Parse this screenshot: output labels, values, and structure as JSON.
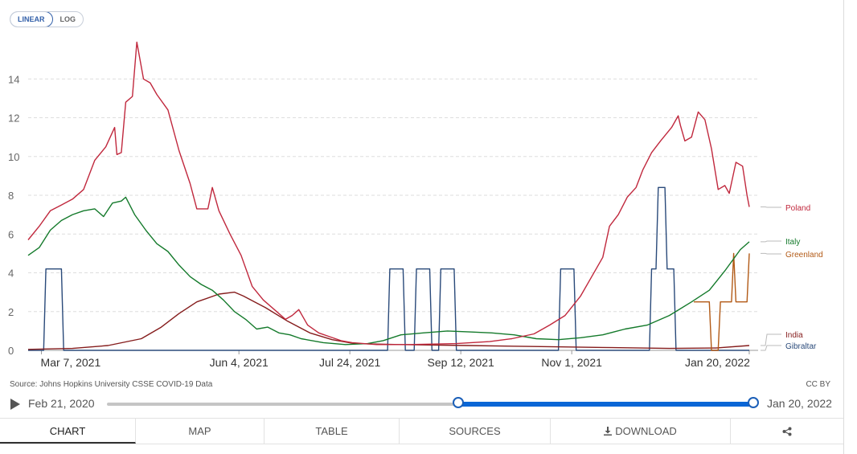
{
  "toolbar": {
    "linear_label": "LINEAR",
    "log_label": "LOG",
    "active_scale": "linear"
  },
  "source_note": "Source: Johns Hopkins University CSSE COVID-19 Data",
  "license": "CC BY",
  "timeline": {
    "start_label": "Feb 21, 2020",
    "end_label": "Jan 20, 2022",
    "range_start_fraction": 0.54,
    "range_end_fraction": 1.0
  },
  "tabs": [
    {
      "id": "chart",
      "label": "CHART",
      "active": true
    },
    {
      "id": "map",
      "label": "MAP",
      "active": false
    },
    {
      "id": "table",
      "label": "TABLE",
      "active": false
    },
    {
      "id": "sources",
      "label": "SOURCES",
      "active": false
    },
    {
      "id": "download",
      "label": "DOWNLOAD",
      "active": false,
      "icon": "download-icon"
    },
    {
      "id": "share",
      "label": "",
      "active": false,
      "icon": "share-icon"
    }
  ],
  "chart_data": {
    "type": "line",
    "x_axis": {
      "type": "date",
      "range": [
        "2021-03-01",
        "2022-01-24"
      ],
      "ticks": [
        {
          "date": "2021-03-07",
          "label": "Mar 7, 2021"
        },
        {
          "date": "2021-06-04",
          "label": "Jun 4, 2021"
        },
        {
          "date": "2021-07-24",
          "label": "Jul 24, 2021"
        },
        {
          "date": "2021-09-12",
          "label": "Sep 12, 2021"
        },
        {
          "date": "2021-11-01",
          "label": "Nov 1, 2021"
        },
        {
          "date": "2022-01-20",
          "label": "Jan 20, 2022"
        }
      ]
    },
    "y_axis": {
      "scale": "linear",
      "min": 0,
      "max": 16,
      "ticks": [
        0,
        2,
        4,
        6,
        8,
        10,
        12,
        14
      ]
    },
    "grid": true,
    "legend": "right",
    "series": [
      {
        "name": "Poland",
        "color": "#c0283d",
        "points": [
          [
            "2021-03-01",
            5.7
          ],
          [
            "2021-03-06",
            6.4
          ],
          [
            "2021-03-11",
            7.2
          ],
          [
            "2021-03-16",
            7.5
          ],
          [
            "2021-03-21",
            7.8
          ],
          [
            "2021-03-26",
            8.3
          ],
          [
            "2021-03-31",
            9.8
          ],
          [
            "2021-04-05",
            10.5
          ],
          [
            "2021-04-09",
            11.5
          ],
          [
            "2021-04-10",
            10.1
          ],
          [
            "2021-04-12",
            10.2
          ],
          [
            "2021-04-14",
            12.8
          ],
          [
            "2021-04-17",
            13.1
          ],
          [
            "2021-04-19",
            15.9
          ],
          [
            "2021-04-22",
            14.0
          ],
          [
            "2021-04-25",
            13.8
          ],
          [
            "2021-04-28",
            13.2
          ],
          [
            "2021-05-03",
            12.4
          ],
          [
            "2021-05-08",
            10.3
          ],
          [
            "2021-05-13",
            8.6
          ],
          [
            "2021-05-16",
            7.3
          ],
          [
            "2021-05-21",
            7.3
          ],
          [
            "2021-05-23",
            8.4
          ],
          [
            "2021-05-26",
            7.2
          ],
          [
            "2021-05-31",
            6.0
          ],
          [
            "2021-06-05",
            4.9
          ],
          [
            "2021-06-10",
            3.3
          ],
          [
            "2021-06-15",
            2.6
          ],
          [
            "2021-06-20",
            2.1
          ],
          [
            "2021-06-25",
            1.6
          ],
          [
            "2021-06-28",
            1.8
          ],
          [
            "2021-07-01",
            2.1
          ],
          [
            "2021-07-05",
            1.3
          ],
          [
            "2021-07-10",
            0.9
          ],
          [
            "2021-07-15",
            0.7
          ],
          [
            "2021-07-20",
            0.5
          ],
          [
            "2021-07-25",
            0.4
          ],
          [
            "2021-08-05",
            0.3
          ],
          [
            "2021-08-20",
            0.3
          ],
          [
            "2021-09-10",
            0.35
          ],
          [
            "2021-09-25",
            0.45
          ],
          [
            "2021-10-05",
            0.6
          ],
          [
            "2021-10-15",
            0.85
          ],
          [
            "2021-10-22",
            1.3
          ],
          [
            "2021-10-29",
            1.8
          ],
          [
            "2021-11-05",
            2.8
          ],
          [
            "2021-11-10",
            3.8
          ],
          [
            "2021-11-15",
            4.8
          ],
          [
            "2021-11-18",
            6.4
          ],
          [
            "2021-11-22",
            7.0
          ],
          [
            "2021-11-26",
            7.9
          ],
          [
            "2021-11-30",
            8.4
          ],
          [
            "2021-12-03",
            9.3
          ],
          [
            "2021-12-07",
            10.2
          ],
          [
            "2021-12-11",
            10.8
          ],
          [
            "2021-12-16",
            11.5
          ],
          [
            "2021-12-19",
            12.1
          ],
          [
            "2021-12-20",
            11.6
          ],
          [
            "2021-12-22",
            10.8
          ],
          [
            "2021-12-25",
            11.0
          ],
          [
            "2021-12-28",
            12.3
          ],
          [
            "2021-12-31",
            11.9
          ],
          [
            "2022-01-03",
            10.4
          ],
          [
            "2022-01-06",
            8.3
          ],
          [
            "2022-01-09",
            8.5
          ],
          [
            "2022-01-11",
            8.1
          ],
          [
            "2022-01-14",
            9.7
          ],
          [
            "2022-01-17",
            9.5
          ],
          [
            "2022-01-19",
            8.0
          ],
          [
            "2022-01-20",
            7.4
          ]
        ]
      },
      {
        "name": "Italy",
        "color": "#147a2b",
        "points": [
          [
            "2021-03-01",
            4.9
          ],
          [
            "2021-03-06",
            5.3
          ],
          [
            "2021-03-11",
            6.2
          ],
          [
            "2021-03-16",
            6.7
          ],
          [
            "2021-03-21",
            7.0
          ],
          [
            "2021-03-26",
            7.2
          ],
          [
            "2021-03-31",
            7.3
          ],
          [
            "2021-04-04",
            6.9
          ],
          [
            "2021-04-08",
            7.6
          ],
          [
            "2021-04-12",
            7.7
          ],
          [
            "2021-04-14",
            7.9
          ],
          [
            "2021-04-18",
            7.0
          ],
          [
            "2021-04-23",
            6.2
          ],
          [
            "2021-04-28",
            5.5
          ],
          [
            "2021-05-03",
            5.1
          ],
          [
            "2021-05-08",
            4.4
          ],
          [
            "2021-05-13",
            3.8
          ],
          [
            "2021-05-18",
            3.4
          ],
          [
            "2021-05-23",
            3.1
          ],
          [
            "2021-05-28",
            2.6
          ],
          [
            "2021-06-02",
            2.0
          ],
          [
            "2021-06-07",
            1.6
          ],
          [
            "2021-06-12",
            1.1
          ],
          [
            "2021-06-17",
            1.2
          ],
          [
            "2021-06-22",
            0.9
          ],
          [
            "2021-06-27",
            0.8
          ],
          [
            "2021-07-02",
            0.6
          ],
          [
            "2021-07-12",
            0.4
          ],
          [
            "2021-07-22",
            0.3
          ],
          [
            "2021-08-01",
            0.35
          ],
          [
            "2021-08-08",
            0.5
          ],
          [
            "2021-08-16",
            0.8
          ],
          [
            "2021-08-26",
            0.9
          ],
          [
            "2021-09-06",
            1.0
          ],
          [
            "2021-09-16",
            0.95
          ],
          [
            "2021-09-26",
            0.9
          ],
          [
            "2021-10-06",
            0.8
          ],
          [
            "2021-10-16",
            0.6
          ],
          [
            "2021-10-26",
            0.55
          ],
          [
            "2021-11-05",
            0.65
          ],
          [
            "2021-11-15",
            0.8
          ],
          [
            "2021-11-25",
            1.1
          ],
          [
            "2021-12-05",
            1.3
          ],
          [
            "2021-12-15",
            1.8
          ],
          [
            "2021-12-25",
            2.5
          ],
          [
            "2022-01-02",
            3.1
          ],
          [
            "2022-01-09",
            4.1
          ],
          [
            "2022-01-16",
            5.2
          ],
          [
            "2022-01-20",
            5.6
          ]
        ]
      },
      {
        "name": "Greenland",
        "color": "#b25a16",
        "points": [
          [
            "2021-12-26",
            2.5
          ],
          [
            "2022-01-02",
            2.5
          ],
          [
            "2022-01-03",
            0
          ],
          [
            "2022-01-06",
            0
          ],
          [
            "2022-01-07",
            2.5
          ],
          [
            "2022-01-12",
            2.5
          ],
          [
            "2022-01-13",
            5.0
          ],
          [
            "2022-01-14",
            2.5
          ],
          [
            "2022-01-19",
            2.5
          ],
          [
            "2022-01-20",
            5.0
          ]
        ]
      },
      {
        "name": "India",
        "color": "#851c1c",
        "points": [
          [
            "2021-03-01",
            0.05
          ],
          [
            "2021-03-21",
            0.1
          ],
          [
            "2021-04-06",
            0.25
          ],
          [
            "2021-04-21",
            0.6
          ],
          [
            "2021-04-30",
            1.2
          ],
          [
            "2021-05-08",
            1.9
          ],
          [
            "2021-05-16",
            2.5
          ],
          [
            "2021-05-26",
            2.9
          ],
          [
            "2021-06-02",
            3.0
          ],
          [
            "2021-06-06",
            2.8
          ],
          [
            "2021-06-16",
            2.2
          ],
          [
            "2021-06-26",
            1.5
          ],
          [
            "2021-07-06",
            0.9
          ],
          [
            "2021-07-16",
            0.55
          ],
          [
            "2021-07-26",
            0.35
          ],
          [
            "2021-08-15",
            0.3
          ],
          [
            "2021-09-15",
            0.25
          ],
          [
            "2021-10-15",
            0.2
          ],
          [
            "2021-11-15",
            0.15
          ],
          [
            "2021-12-15",
            0.1
          ],
          [
            "2022-01-05",
            0.12
          ],
          [
            "2022-01-20",
            0.25
          ]
        ]
      },
      {
        "name": "Gibraltar",
        "color": "#2a4a7a",
        "points": [
          [
            "2021-03-01",
            0
          ],
          [
            "2021-03-08",
            0
          ],
          [
            "2021-03-09",
            4.2
          ],
          [
            "2021-03-16",
            4.2
          ],
          [
            "2021-03-17",
            0
          ],
          [
            "2021-08-10",
            0
          ],
          [
            "2021-08-11",
            4.2
          ],
          [
            "2021-08-17",
            4.2
          ],
          [
            "2021-08-18",
            0
          ],
          [
            "2021-08-22",
            0
          ],
          [
            "2021-08-23",
            4.2
          ],
          [
            "2021-08-29",
            4.2
          ],
          [
            "2021-08-30",
            0
          ],
          [
            "2021-09-02",
            0
          ],
          [
            "2021-09-03",
            4.2
          ],
          [
            "2021-09-09",
            4.2
          ],
          [
            "2021-09-10",
            0
          ],
          [
            "2021-10-26",
            0
          ],
          [
            "2021-10-27",
            4.2
          ],
          [
            "2021-11-02",
            4.2
          ],
          [
            "2021-11-03",
            0
          ],
          [
            "2021-12-06",
            0
          ],
          [
            "2021-12-07",
            4.2
          ],
          [
            "2021-12-09",
            4.2
          ],
          [
            "2021-12-10",
            8.4
          ],
          [
            "2021-12-13",
            8.4
          ],
          [
            "2021-12-14",
            4.2
          ],
          [
            "2021-12-17",
            4.2
          ],
          [
            "2021-12-18",
            0
          ],
          [
            "2022-01-20",
            0
          ]
        ]
      }
    ]
  }
}
